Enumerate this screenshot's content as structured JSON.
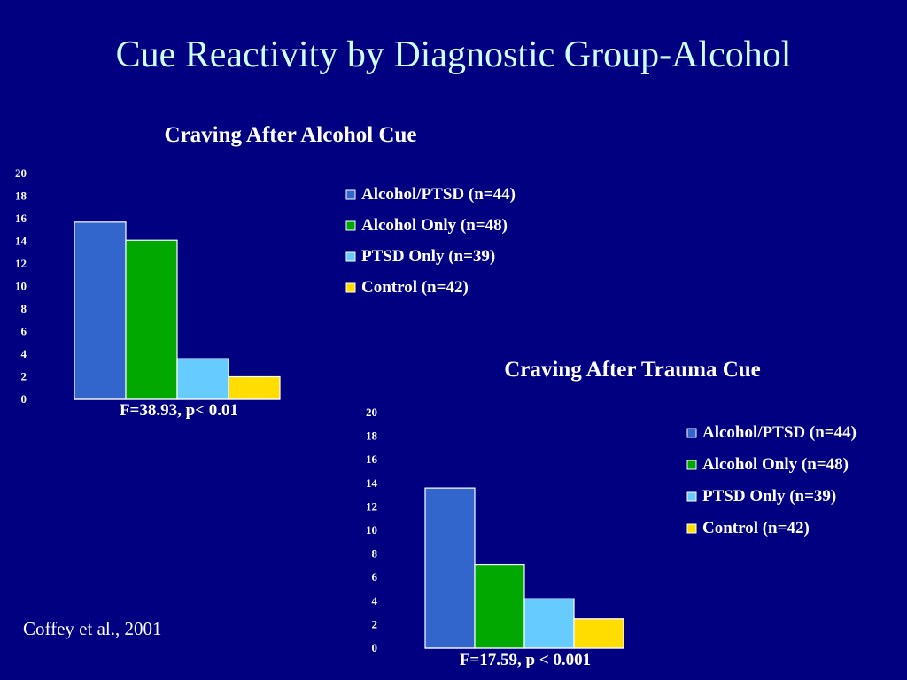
{
  "slide": {
    "title": "Cue Reactivity by Diagnostic Group-Alcohol",
    "citation": "Coffey et al., 2001"
  },
  "chart_data": [
    {
      "type": "bar",
      "title": "Craving After Alcohol Cue",
      "categories": [
        "Alcohol/PTSD (n=44)",
        "Alcohol Only (n=48)",
        "PTSD Only (n=39)",
        "Control (n=42)"
      ],
      "values": [
        15.7,
        14.1,
        3.6,
        2.0
      ],
      "colors": [
        "#3366cc",
        "#00a800",
        "#66ccff",
        "#ffdd00"
      ],
      "ylim": [
        0,
        20
      ],
      "yticks": [
        "0",
        "2",
        "4",
        "6",
        "8",
        "10",
        "12",
        "14",
        "16",
        "18",
        "20"
      ],
      "annotation": "F=38.93, p< 0.01",
      "legend_position": "right",
      "grid": false
    },
    {
      "type": "bar",
      "title": "Craving After Trauma Cue",
      "categories": [
        "Alcohol/PTSD (n=44)",
        "Alcohol Only (n=48)",
        "PTSD Only (n=39)",
        "Control (n=42)"
      ],
      "values": [
        13.6,
        7.1,
        4.2,
        2.5
      ],
      "colors": [
        "#3366cc",
        "#00a800",
        "#66ccff",
        "#ffdd00"
      ],
      "ylim": [
        0,
        20
      ],
      "yticks": [
        "0",
        "2",
        "4",
        "6",
        "8",
        "10",
        "12",
        "14",
        "16",
        "18",
        "20"
      ],
      "annotation": "F=17.59, p < 0.001",
      "legend_position": "right",
      "grid": false
    }
  ]
}
